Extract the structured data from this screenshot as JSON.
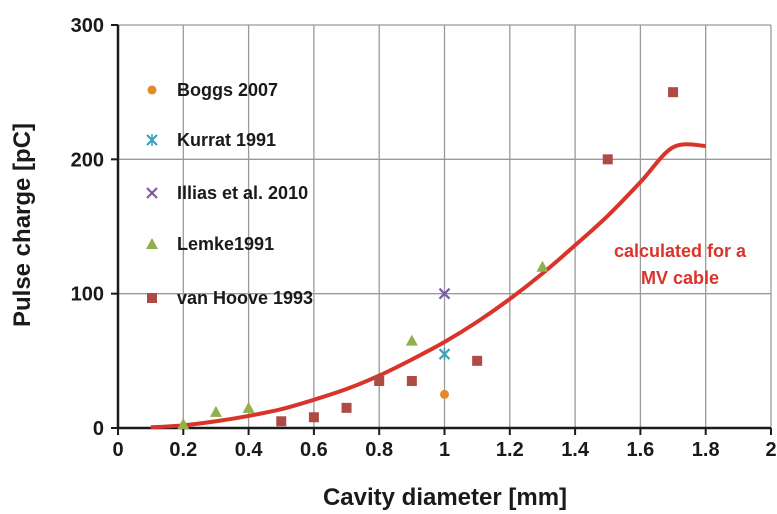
{
  "chart_data": {
    "type": "scatter",
    "xlabel": "Cavity diameter [mm]",
    "ylabel": "Pulse charge [pC]",
    "xlim": [
      0,
      2
    ],
    "ylim": [
      0,
      300
    ],
    "xticks": [
      "0",
      "0.2",
      "0.4",
      "0.6",
      "0.8",
      "1",
      "1.2",
      "1.4",
      "1.6",
      "1.8",
      "2"
    ],
    "yticks": [
      "0",
      "100",
      "200",
      "300"
    ],
    "grid": "on",
    "legend_position": "upper-left",
    "series": [
      {
        "name": "Boggs 2007",
        "marker": "circle",
        "color": "#e08a2c",
        "points": [
          [
            1.0,
            25
          ]
        ]
      },
      {
        "name": "Kurrat 1991",
        "marker": "star",
        "color": "#3aa3b8",
        "points": [
          [
            1.0,
            55
          ]
        ]
      },
      {
        "name": "Illias et al. 2010",
        "marker": "x",
        "color": "#7d5aa6",
        "points": [
          [
            1.0,
            100
          ]
        ]
      },
      {
        "name": "Lemke1991",
        "marker": "triangle",
        "color": "#8fb04a",
        "points": [
          [
            0.2,
            3
          ],
          [
            0.3,
            12
          ],
          [
            0.4,
            15
          ],
          [
            0.9,
            65
          ],
          [
            1.3,
            120
          ]
        ]
      },
      {
        "name": "van Hoove 1993",
        "marker": "square",
        "color": "#b04a45",
        "points": [
          [
            0.5,
            5
          ],
          [
            0.6,
            8
          ],
          [
            0.7,
            15
          ],
          [
            0.8,
            35
          ],
          [
            0.9,
            35
          ],
          [
            1.1,
            50
          ],
          [
            1.5,
            200
          ],
          [
            1.7,
            250
          ]
        ]
      }
    ],
    "curve": {
      "label": "calculated for a MV cable",
      "label_lines": [
        "calculated for a",
        "MV cable"
      ],
      "color": "#d9342b",
      "points": [
        [
          0.1,
          0.5
        ],
        [
          0.2,
          2
        ],
        [
          0.3,
          5
        ],
        [
          0.4,
          9
        ],
        [
          0.5,
          14
        ],
        [
          0.6,
          21
        ],
        [
          0.7,
          29
        ],
        [
          0.8,
          39
        ],
        [
          0.9,
          51
        ],
        [
          1.0,
          64
        ],
        [
          1.1,
          79
        ],
        [
          1.2,
          96
        ],
        [
          1.3,
          115
        ],
        [
          1.4,
          136
        ],
        [
          1.5,
          158
        ],
        [
          1.6,
          183
        ],
        [
          1.7,
          209
        ],
        [
          1.8,
          210
        ]
      ]
    }
  }
}
